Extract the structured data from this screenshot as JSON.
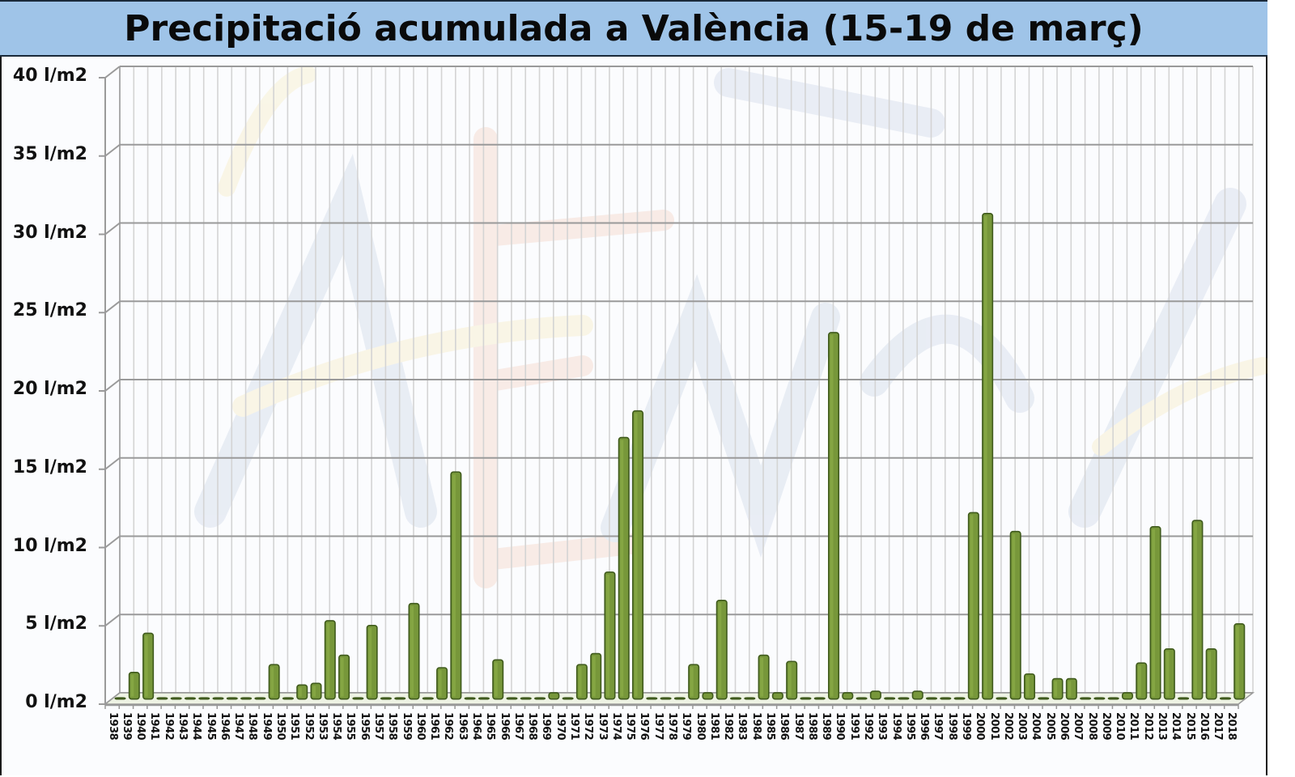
{
  "title": "Precipitació acumulada a València (15-19 de març)",
  "colors": {
    "title_bg": "#9fc4e8",
    "bar_fill": "#77973a",
    "bar_edge": "#3f5a1c",
    "grid_major": "#9a9a9a",
    "grid_minor": "#d4d4d4"
  },
  "chart_data": {
    "type": "bar",
    "title": "Precipitació acumulada a València (15-19 de març)",
    "xlabel": "",
    "ylabel": "",
    "unit": "l/m2",
    "ylim": [
      0,
      40
    ],
    "yticks": [
      0,
      5,
      10,
      15,
      20,
      25,
      30,
      35,
      40
    ],
    "ytick_labels": [
      "0 l/m2",
      "5 l/m2",
      "10 l/m2",
      "15 l/m2",
      "20 l/m2",
      "25 l/m2",
      "30 l/m2",
      "35 l/m2",
      "40 l/m2"
    ],
    "grid": true,
    "legend": null,
    "style": "3d-column",
    "categories": [
      "1938",
      "1939",
      "1940",
      "1941",
      "1942",
      "1943",
      "1944",
      "1945",
      "1946",
      "1947",
      "1948",
      "1949",
      "1950",
      "1951",
      "1952",
      "1953",
      "1954",
      "1955",
      "1956",
      "1957",
      "1958",
      "1959",
      "1960",
      "1961",
      "1962",
      "1963",
      "1964",
      "1965",
      "1966",
      "1967",
      "1968",
      "1969",
      "1970",
      "1971",
      "1972",
      "1973",
      "1974",
      "1975",
      "1976",
      "1977",
      "1978",
      "1979",
      "1980",
      "1981",
      "1982",
      "1983",
      "1984",
      "1985",
      "1986",
      "1987",
      "1988",
      "1989",
      "1990",
      "1991",
      "1992",
      "1993",
      "1994",
      "1995",
      "1996",
      "1997",
      "1998",
      "1999",
      "2000",
      "2001",
      "2002",
      "2003",
      "2004",
      "2005",
      "2006",
      "2007",
      "2008",
      "2009",
      "2010",
      "2011",
      "2012",
      "2013",
      "2014",
      "2015",
      "2016",
      "2017",
      "2018"
    ],
    "values": [
      0,
      1.7,
      4.2,
      0,
      0,
      0,
      0,
      0,
      0,
      0,
      0,
      2.2,
      0,
      0.9,
      1.0,
      5.0,
      2.8,
      0,
      4.7,
      0,
      0,
      6.1,
      0,
      2.0,
      14.5,
      0,
      0,
      2.5,
      0,
      0,
      0,
      0.4,
      0,
      2.2,
      2.9,
      8.1,
      16.7,
      18.4,
      0,
      0,
      0,
      2.2,
      0.4,
      6.3,
      0,
      0,
      2.8,
      0.4,
      2.4,
      0,
      0,
      23.4,
      0.4,
      0,
      0.5,
      0,
      0,
      0.5,
      0,
      0,
      0,
      11.9,
      31.0,
      0,
      10.7,
      1.6,
      0,
      1.3,
      1.3,
      0,
      0,
      0,
      0.4,
      2.3,
      11.0,
      3.2,
      0,
      11.4,
      3.2,
      0,
      4.8
    ]
  }
}
